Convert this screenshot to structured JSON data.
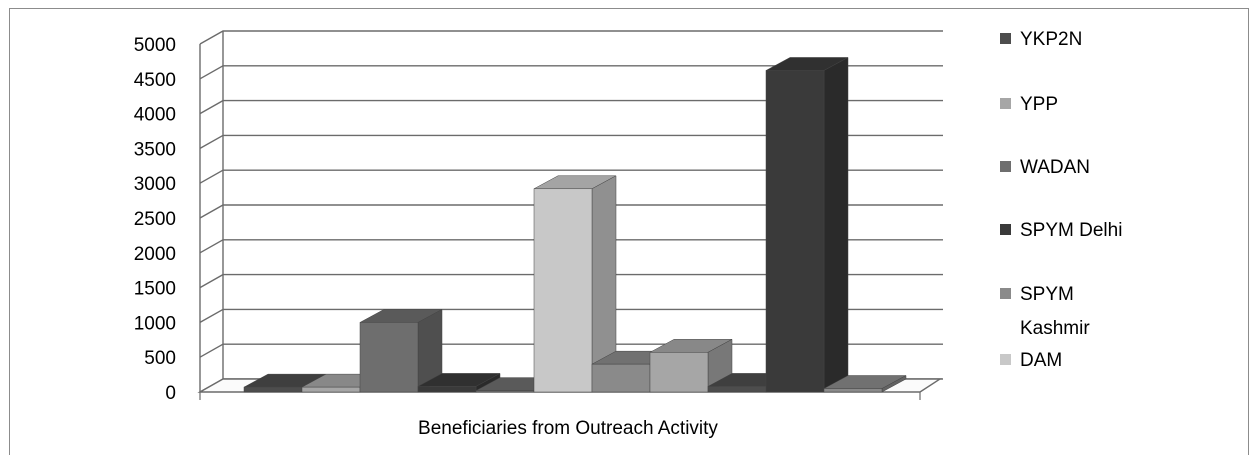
{
  "chart_data": {
    "type": "bar",
    "title": "",
    "xlabel": "Beneficiaries from Outreach Activity",
    "ylabel": "",
    "ylim": [
      0,
      5000
    ],
    "yticks": [
      "0",
      "500",
      "1000",
      "1500",
      "2000",
      "2500",
      "3000",
      "3500",
      "4000",
      "4500",
      "5000"
    ],
    "grid": true,
    "legend_position": "right",
    "style": "3d-clustered-grayscale",
    "series": [
      {
        "name": "YKP2N",
        "color": "#4d4d4d",
        "values": [
          70,
          80
        ]
      },
      {
        "name": "YPP",
        "color": "#a6a6a6",
        "values": [
          70,
          570
        ]
      },
      {
        "name": "WADAN",
        "color": "#6e6e6e",
        "values": [
          1000,
          20
        ]
      },
      {
        "name": "SPYM Delhi",
        "color": "#3a3a3a",
        "values": [
          80,
          4620
        ]
      },
      {
        "name": "SPYM Kashmir",
        "color": "#8a8a8a",
        "values": [
          400,
          50
        ]
      },
      {
        "name": "DAM",
        "color": "#c8c8c8",
        "values": [
          2920
        ]
      }
    ]
  }
}
